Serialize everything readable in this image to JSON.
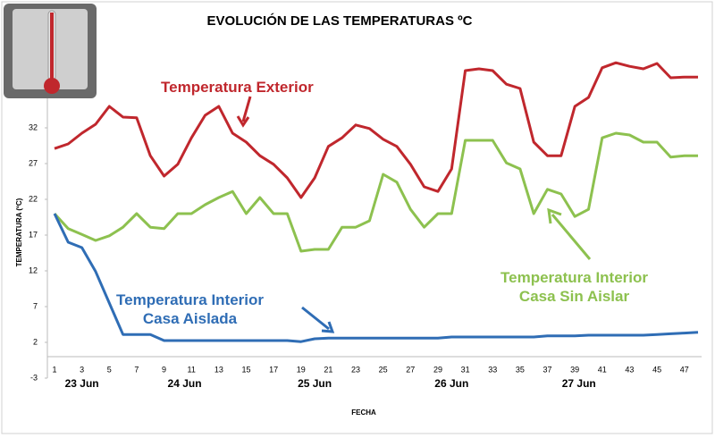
{
  "chart_data": {
    "type": "line",
    "title": "EVOLUCIÓN DE LAS TEMPERATURAS ºC",
    "y_label": "TEMPERATURA (ºC)",
    "x_label": "FECHA",
    "categories": [
      "1",
      null,
      "3",
      null,
      "5",
      null,
      "7",
      null,
      "9",
      null,
      "11",
      null,
      "13",
      null,
      "15",
      null,
      "17",
      null,
      "19",
      null,
      "21",
      null,
      "23",
      null,
      "25",
      null,
      "27",
      null,
      "29",
      null,
      "31",
      null,
      "33",
      null,
      "35",
      null,
      "37",
      null,
      "39",
      null,
      "41",
      null,
      "43",
      null,
      "45",
      null,
      "47",
      null
    ],
    "dates": [
      "23 Jun",
      "24 Jun",
      "25 Jun",
      "26 Jun",
      "27 Jun"
    ],
    "ylim": [
      -3,
      42
    ],
    "yticks": [
      -3,
      2,
      7,
      12,
      17,
      22,
      27,
      32
    ],
    "series": [
      {
        "name": "Temperatura Exterior",
        "color": "#c0272d",
        "values": [
          29.1,
          29.75,
          31.25,
          32.5,
          35,
          33.5,
          33.4,
          28.1,
          25.25,
          26.9,
          30.6,
          33.75,
          35,
          31.25,
          30,
          28.1,
          26.9,
          25,
          22.25,
          25,
          29.4,
          30.6,
          32.4,
          31.9,
          30.4,
          29.4,
          26.9,
          23.75,
          23.1,
          26.25,
          40,
          40.25,
          40,
          38.1,
          37.5,
          30,
          28.1,
          28.1,
          35,
          36.25,
          40.4,
          41.1,
          40.6,
          40.25,
          41,
          39,
          39.1,
          39.1
        ]
      },
      {
        "name": "Temperatura Interior\nCasa Sin Aislar",
        "color": "#8dc14f",
        "values": [
          20,
          17.9,
          17.1,
          16.25,
          16.9,
          18.1,
          20,
          18.1,
          17.9,
          20,
          20,
          21.25,
          22.25,
          23.1,
          20,
          22.25,
          20,
          20,
          14.75,
          15,
          15,
          18.1,
          18.1,
          19,
          25.5,
          24.4,
          20.6,
          18.1,
          20,
          20,
          30.25,
          30.25,
          30.25,
          27.1,
          26.25,
          20,
          23.4,
          22.75,
          19.6,
          20.6,
          30.6,
          31.25,
          31,
          30,
          30,
          27.9,
          28.1,
          28.1
        ]
      },
      {
        "name": "Temperatura Interior\nCasa Aislada",
        "color": "#2f6db5",
        "values": [
          20,
          16,
          15.25,
          11.9,
          7.5,
          3.1,
          3.1,
          3.1,
          2.25,
          2.25,
          2.25,
          2.25,
          2.25,
          2.25,
          2.25,
          2.25,
          2.25,
          2.25,
          2.1,
          2.5,
          2.6,
          2.6,
          2.6,
          2.6,
          2.6,
          2.6,
          2.6,
          2.6,
          2.6,
          2.75,
          2.75,
          2.75,
          2.75,
          2.75,
          2.75,
          2.75,
          2.9,
          2.9,
          2.9,
          3,
          3,
          3,
          3,
          3,
          3.1,
          3.2,
          3.3,
          3.4
        ]
      }
    ]
  }
}
